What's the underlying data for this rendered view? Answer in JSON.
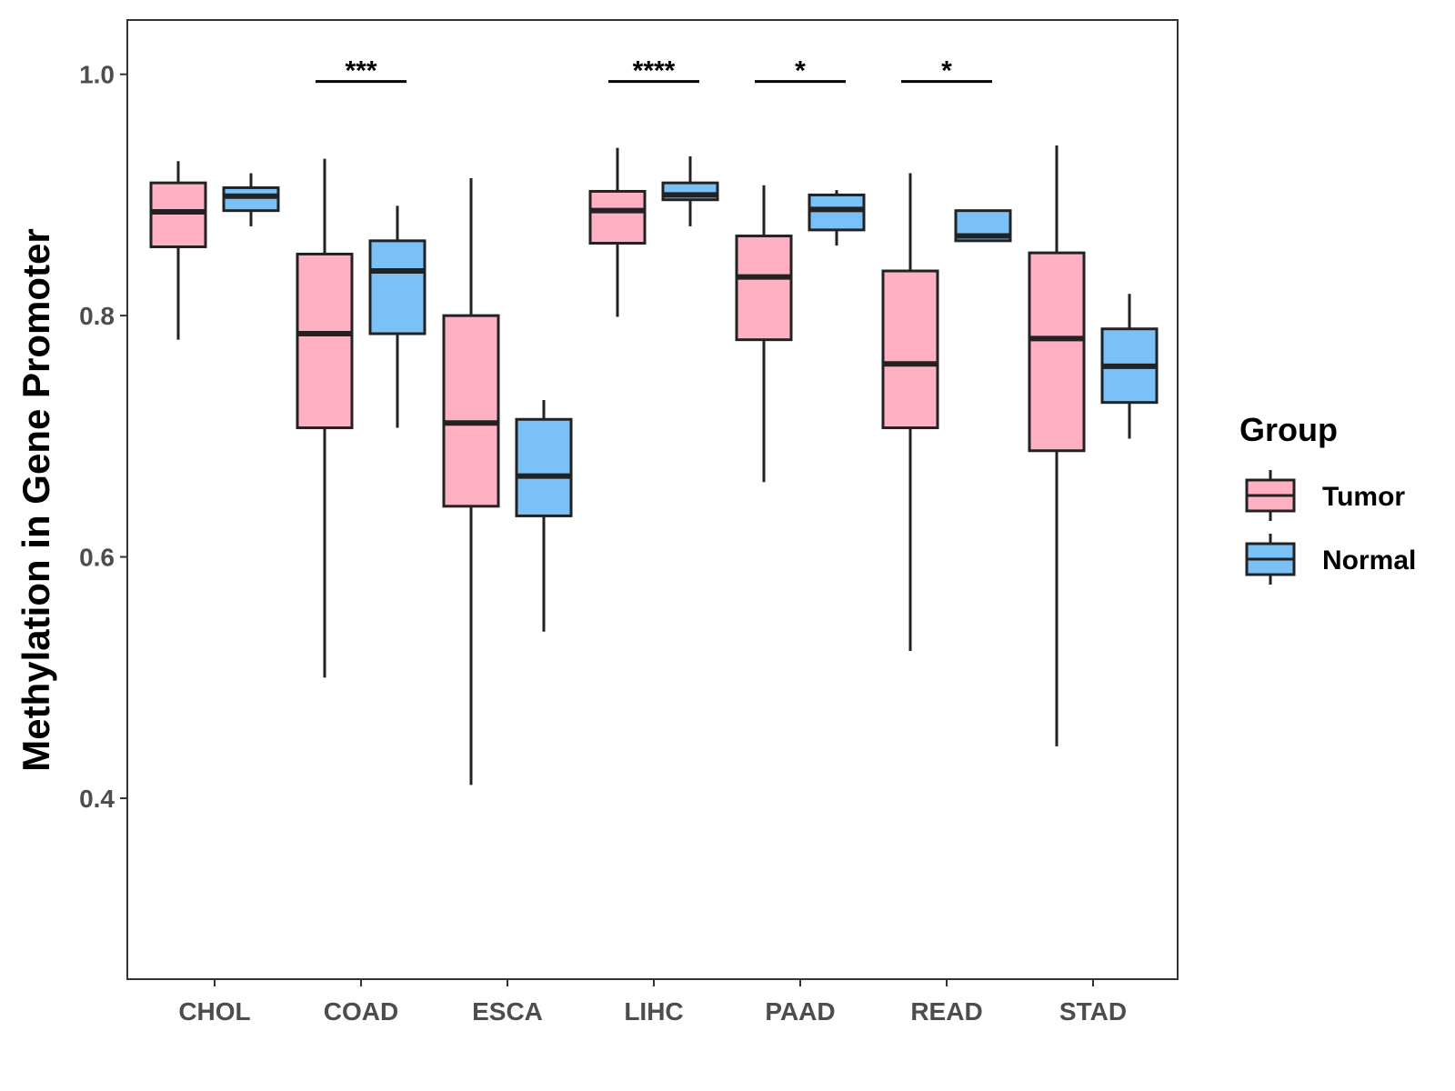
{
  "chart_data": {
    "type": "boxplot",
    "title": "",
    "xlabel": "",
    "ylabel": "Methylation in Gene Promoter",
    "ylim": [
      0.25,
      1.045
    ],
    "yticks": [
      0.4,
      0.6,
      0.8,
      1.0
    ],
    "ytick_labels": [
      "0.4",
      "0.6",
      "0.8",
      "1.0"
    ],
    "categories": [
      "CHOL",
      "COAD",
      "ESCA",
      "LIHC",
      "PAAD",
      "READ",
      "STAD"
    ],
    "legend": {
      "title": "Group",
      "position": "right",
      "entries": [
        {
          "name": "Tumor",
          "color": "#FFB0C3"
        },
        {
          "name": "Normal",
          "color": "#7AC1F7"
        }
      ]
    },
    "series": [
      {
        "name": "Tumor",
        "color": "#FFB0C3",
        "boxes": [
          {
            "min": 0.78,
            "q1": 0.857,
            "median": 0.886,
            "q3": 0.91,
            "max": 0.928
          },
          {
            "min": 0.5,
            "q1": 0.707,
            "median": 0.785,
            "q3": 0.851,
            "max": 0.93
          },
          {
            "min": 0.411,
            "q1": 0.642,
            "median": 0.711,
            "q3": 0.8,
            "max": 0.914
          },
          {
            "min": 0.799,
            "q1": 0.86,
            "median": 0.887,
            "q3": 0.903,
            "max": 0.939
          },
          {
            "min": 0.662,
            "q1": 0.78,
            "median": 0.832,
            "q3": 0.866,
            "max": 0.908
          },
          {
            "min": 0.522,
            "q1": 0.707,
            "median": 0.76,
            "q3": 0.837,
            "max": 0.918
          },
          {
            "min": 0.443,
            "q1": 0.688,
            "median": 0.781,
            "q3": 0.852,
            "max": 0.941
          }
        ]
      },
      {
        "name": "Normal",
        "color": "#7AC1F7",
        "boxes": [
          {
            "min": 0.874,
            "q1": 0.887,
            "median": 0.899,
            "q3": 0.906,
            "max": 0.918
          },
          {
            "min": 0.707,
            "q1": 0.785,
            "median": 0.837,
            "q3": 0.862,
            "max": 0.891
          },
          {
            "min": 0.538,
            "q1": 0.634,
            "median": 0.667,
            "q3": 0.714,
            "max": 0.73
          },
          {
            "min": 0.874,
            "q1": 0.896,
            "median": 0.9,
            "q3": 0.91,
            "max": 0.932
          },
          {
            "min": 0.858,
            "q1": 0.871,
            "median": 0.888,
            "q3": 0.9,
            "max": 0.904
          },
          {
            "min": 0.862,
            "q1": 0.862,
            "median": 0.866,
            "q3": 0.887,
            "max": 0.887
          },
          {
            "min": 0.698,
            "q1": 0.728,
            "median": 0.758,
            "q3": 0.789,
            "max": 0.818
          }
        ]
      }
    ],
    "significance": [
      {
        "category": "COAD",
        "label": "***",
        "y": 0.994
      },
      {
        "category": "LIHC",
        "label": "****",
        "y": 0.994
      },
      {
        "category": "PAAD",
        "label": "*",
        "y": 0.994
      },
      {
        "category": "READ",
        "label": "*",
        "y": 0.994
      }
    ]
  }
}
